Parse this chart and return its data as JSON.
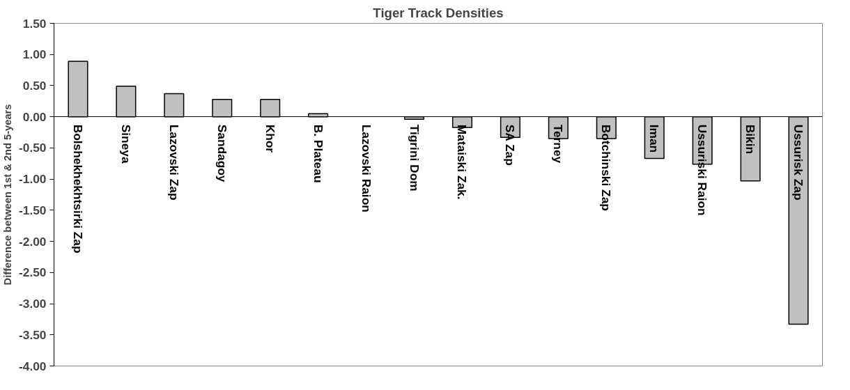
{
  "chart_data": {
    "type": "bar",
    "title": "Tiger Track Densities",
    "ylabel": "Difference between 1st & 2nd 5-years",
    "categories": [
      "Bolshekhekhtsirki Zap",
      "Sineya",
      "Lazovski Zap",
      "Sandagoy",
      "Khor",
      "B. Plateau",
      "Lazovski Raion",
      "Tigrini Dom",
      "Mataiski Zak.",
      "SA Zap",
      "Terney",
      "Botchinski Zap",
      "Iman",
      "Ussuriski Raion",
      "Bikin",
      "Ussurisk Zap"
    ],
    "values": [
      0.89,
      0.49,
      0.37,
      0.28,
      0.28,
      0.05,
      0,
      -0.04,
      -0.17,
      -0.33,
      -0.35,
      -0.35,
      -0.67,
      -0.76,
      -1.03,
      -3.33
    ],
    "color": "#c0c0c0",
    "ylim": [
      -4,
      1.5
    ],
    "yticks": [
      {
        "value": 1.5,
        "label": "1.50"
      },
      {
        "value": 1,
        "label": "1.00"
      },
      {
        "value": 0.5,
        "label": "0.50"
      },
      {
        "value": 0,
        "label": "0.00"
      },
      {
        "value": -0.5,
        "label": "-0.50"
      },
      {
        "value": -1,
        "label": "-1.00"
      },
      {
        "value": -1.5,
        "label": "-1.50"
      },
      {
        "value": -2,
        "label": "-2.00"
      },
      {
        "value": -2.5,
        "label": "-2.50"
      },
      {
        "value": -3,
        "label": "-3.00"
      },
      {
        "value": -3.5,
        "label": "-3.50"
      },
      {
        "value": -4,
        "label": "-4.00"
      }
    ],
    "grid": false
  }
}
